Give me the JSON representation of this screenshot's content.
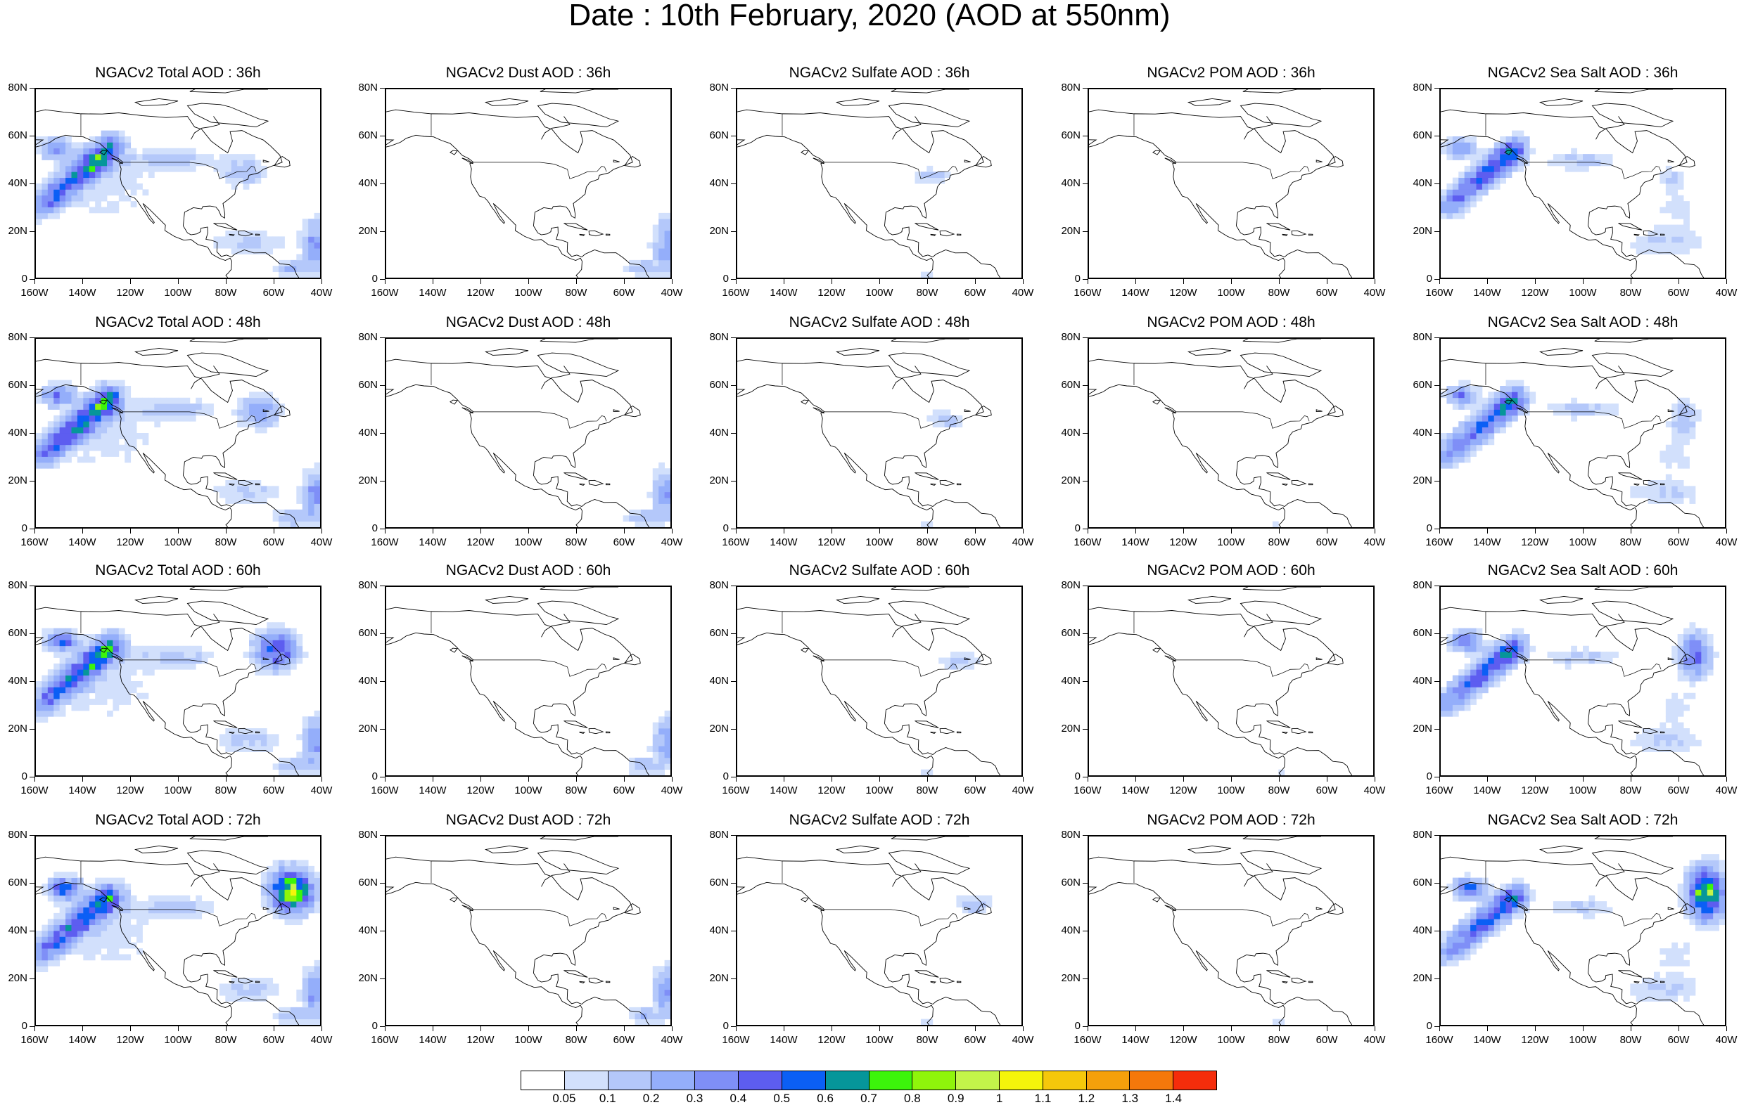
{
  "title": "Date : 10th February, 2020 (AOD at 550nm)",
  "panels": [
    {
      "title": "NGACv2 Total AOD : 36h",
      "species": "total",
      "hour": 36
    },
    {
      "title": "NGACv2 Dust AOD : 36h",
      "species": "dust",
      "hour": 36
    },
    {
      "title": "NGACv2 Sulfate AOD : 36h",
      "species": "sulfate",
      "hour": 36
    },
    {
      "title": "NGACv2 POM AOD : 36h",
      "species": "pom",
      "hour": 36
    },
    {
      "title": "NGACv2 Sea Salt AOD : 36h",
      "species": "seasalt",
      "hour": 36
    },
    {
      "title": "NGACv2 Total AOD : 48h",
      "species": "total",
      "hour": 48
    },
    {
      "title": "NGACv2 Dust AOD : 48h",
      "species": "dust",
      "hour": 48
    },
    {
      "title": "NGACv2 Sulfate AOD : 48h",
      "species": "sulfate",
      "hour": 48
    },
    {
      "title": "NGACv2 POM AOD : 48h",
      "species": "pom",
      "hour": 48
    },
    {
      "title": "NGACv2 Sea Salt AOD : 48h",
      "species": "seasalt",
      "hour": 48
    },
    {
      "title": "NGACv2 Total AOD : 60h",
      "species": "total",
      "hour": 60
    },
    {
      "title": "NGACv2 Dust AOD : 60h",
      "species": "dust",
      "hour": 60
    },
    {
      "title": "NGACv2 Sulfate AOD : 60h",
      "species": "sulfate",
      "hour": 60
    },
    {
      "title": "NGACv2 POM AOD : 60h",
      "species": "pom",
      "hour": 60
    },
    {
      "title": "NGACv2 Sea Salt AOD : 60h",
      "species": "seasalt",
      "hour": 60
    },
    {
      "title": "NGACv2 Total AOD : 72h",
      "species": "total",
      "hour": 72
    },
    {
      "title": "NGACv2 Dust AOD : 72h",
      "species": "dust",
      "hour": 72
    },
    {
      "title": "NGACv2 Sulfate AOD : 72h",
      "species": "sulfate",
      "hour": 72
    },
    {
      "title": "NGACv2 POM AOD : 72h",
      "species": "pom",
      "hour": 72
    },
    {
      "title": "NGACv2 Sea Salt  AOD : 72h",
      "species": "seasalt",
      "hour": 72
    }
  ],
  "lat_ticks": [
    "80N",
    "60N",
    "40N",
    "20N",
    "0"
  ],
  "lon_ticks": [
    "160W",
    "140W",
    "120W",
    "100W",
    "80W",
    "60W",
    "40W"
  ],
  "colorbar": {
    "colors": [
      "#ffffff",
      "#d2e0fc",
      "#b4c8fa",
      "#94aefa",
      "#7f8ff7",
      "#5d5df0",
      "#0b5ff5",
      "#06969a",
      "#3cf50b",
      "#8ff50b",
      "#c3f54a",
      "#f5f50b",
      "#f5c80b",
      "#f5a00b",
      "#f5780b",
      "#f52d0b"
    ],
    "labels": [
      "0.05",
      "0.1",
      "0.2",
      "0.3",
      "0.4",
      "0.5",
      "0.6",
      "0.7",
      "0.8",
      "0.9",
      "1",
      "1.1",
      "1.2",
      "1.3",
      "1.4"
    ]
  }
}
